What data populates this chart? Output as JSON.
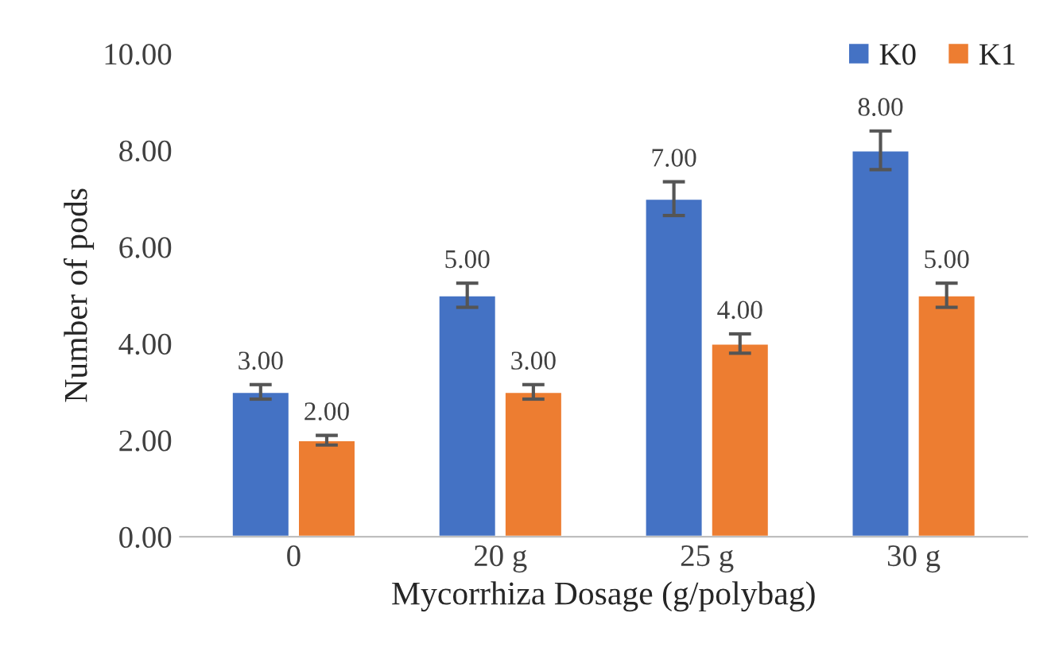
{
  "chart_data": {
    "type": "bar",
    "xlabel": "Mycorrhiza Dosage (g/polybag)",
    "ylabel": "Number of pods",
    "categories": [
      "0",
      "20 g",
      "25 g",
      "30 g"
    ],
    "series": [
      {
        "name": "K0",
        "color": "#4472c4",
        "values": [
          3,
          5,
          7,
          8
        ],
        "errors": [
          0.15,
          0.25,
          0.35,
          0.4
        ],
        "value_labels": [
          "3.00",
          "5.00",
          "7.00",
          "8.00"
        ]
      },
      {
        "name": "K1",
        "color": "#ed7d31",
        "values": [
          2,
          3,
          4,
          5
        ],
        "errors": [
          0.1,
          0.15,
          0.2,
          0.25
        ],
        "value_labels": [
          "2.00",
          "3.00",
          "4.00",
          "5.00"
        ]
      }
    ],
    "ylim": [
      0,
      10
    ],
    "yticks": [
      {
        "value": 0,
        "label": "0.00"
      },
      {
        "value": 2,
        "label": "2.00"
      },
      {
        "value": 4,
        "label": "4.00"
      },
      {
        "value": 6,
        "label": "6.00"
      },
      {
        "value": 8,
        "label": "8.00"
      },
      {
        "value": 10,
        "label": "10.00"
      }
    ],
    "grid": false,
    "legend": "top right"
  }
}
